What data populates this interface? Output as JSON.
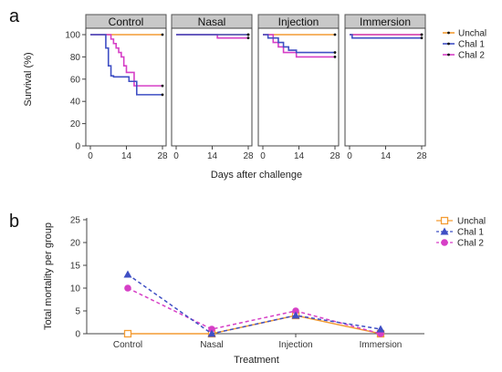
{
  "colors": {
    "Unchal": "#f39c33",
    "Chal 1": "#3f4fc4",
    "Chal 2": "#d63fc6"
  },
  "chart_data": [
    {
      "panel_label": "a",
      "type": "line",
      "step": true,
      "xlabel": "Days after challenge",
      "ylabel": "Survival (%)",
      "xlim": [
        0,
        28
      ],
      "ylim": [
        0,
        100
      ],
      "xticks": [
        0,
        14,
        28
      ],
      "yticks": [
        0,
        20,
        40,
        60,
        80,
        100
      ],
      "legend": [
        "Unchal",
        "Chal 1",
        "Chal 2"
      ],
      "legend_position": "right",
      "facets": [
        {
          "title": "Control",
          "series": [
            {
              "name": "Unchal",
              "x": [
                0,
                28
              ],
              "y": [
                100,
                100
              ]
            },
            {
              "name": "Chal 1",
              "x": [
                0,
                6,
                7,
                8,
                9,
                15,
                18,
                28
              ],
              "y": [
                100,
                88,
                72,
                63,
                62,
                58,
                46,
                46
              ]
            },
            {
              "name": "Chal 2",
              "x": [
                0,
                8,
                9,
                10,
                11,
                12,
                13,
                14,
                17,
                28
              ],
              "y": [
                100,
                96,
                92,
                88,
                84,
                80,
                72,
                66,
                54,
                54
              ]
            }
          ]
        },
        {
          "title": "Nasal",
          "series": [
            {
              "name": "Unchal",
              "x": [
                0,
                28
              ],
              "y": [
                100,
                100
              ]
            },
            {
              "name": "Chal 1",
              "x": [
                0,
                28
              ],
              "y": [
                100,
                100
              ]
            },
            {
              "name": "Chal 2",
              "x": [
                0,
                16,
                28
              ],
              "y": [
                100,
                97,
                97
              ]
            }
          ]
        },
        {
          "title": "Injection",
          "series": [
            {
              "name": "Unchal",
              "x": [
                0,
                28
              ],
              "y": [
                100,
                100
              ]
            },
            {
              "name": "Chal 1",
              "x": [
                0,
                2,
                6,
                8,
                10,
                13,
                28
              ],
              "y": [
                100,
                97,
                93,
                89,
                86,
                84,
                84
              ]
            },
            {
              "name": "Chal 2",
              "x": [
                0,
                4,
                6,
                8,
                13,
                28
              ],
              "y": [
                100,
                93,
                89,
                84,
                80,
                80
              ]
            }
          ]
        },
        {
          "title": "Immersion",
          "series": [
            {
              "name": "Unchal",
              "x": [
                0,
                28
              ],
              "y": [
                100,
                100
              ]
            },
            {
              "name": "Chal 1",
              "x": [
                0,
                1,
                28
              ],
              "y": [
                100,
                97,
                97
              ]
            },
            {
              "name": "Chal 2",
              "x": [
                0,
                28
              ],
              "y": [
                100,
                100
              ]
            }
          ]
        }
      ]
    },
    {
      "panel_label": "b",
      "type": "line",
      "categories": [
        "Control",
        "Nasal",
        "Injection",
        "Immersion"
      ],
      "xlabel": "Treatment",
      "ylabel": "Total mortality per group",
      "ylim": [
        0,
        25
      ],
      "yticks": [
        0,
        5,
        10,
        15,
        20,
        25
      ],
      "legend_position": "top-right",
      "series": [
        {
          "name": "Unchal",
          "values": [
            0,
            0,
            4,
            0
          ],
          "marker": "square-open",
          "dash": "solid"
        },
        {
          "name": "Chal 1",
          "values": [
            13,
            0,
            4,
            1
          ],
          "marker": "triangle",
          "dash": "dashed"
        },
        {
          "name": "Chal 2",
          "values": [
            10,
            1,
            5,
            0
          ],
          "marker": "circle",
          "dash": "dashed"
        }
      ]
    }
  ]
}
